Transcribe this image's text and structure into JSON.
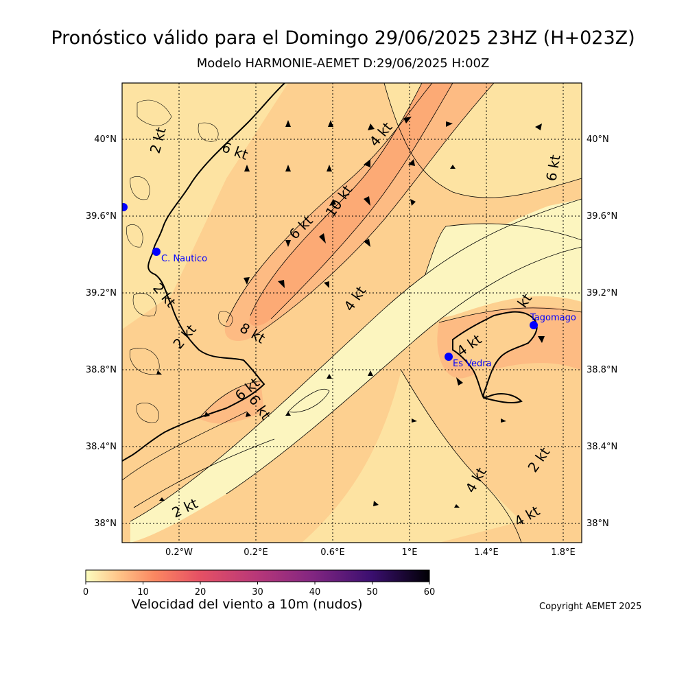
{
  "header": {
    "title": "Pronóstico válido para el Domingo 29/06/2025 23HZ (H+023Z)",
    "subtitle": "Modelo HARMONIE-AEMET D:29/06/2025 H:00Z"
  },
  "map": {
    "lat_labels": [
      "40°N",
      "39.6°N",
      "39.2°N",
      "38.8°N",
      "38.4°N",
      "38°N"
    ],
    "lon_labels": [
      "0.2°W",
      "0.2°E",
      "0.6°E",
      "1°E",
      "1.4°E",
      "1.8°E"
    ],
    "stations": [
      {
        "name": "C. Nautico"
      },
      {
        "name": "Es Vedra"
      },
      {
        "name": "Tagomago"
      },
      {
        "name": ""
      }
    ],
    "contour_labels": [
      "2 kt",
      "6 kt",
      "4 kt",
      "10 kt",
      "6 kt",
      "6 kt",
      "2 kt",
      "8 kt",
      "4 kt",
      "2 kt",
      "6 kt",
      "6 kt",
      "4 kt",
      "4 kt",
      "2 kt",
      "2 kt",
      "4 kt",
      "kt"
    ],
    "colors": {
      "sea_light": "#fcf5bf",
      "band_2": "#fde3a2",
      "band_4": "#fdd090",
      "band_6": "#fdbb83",
      "band_8": "#fcaa75",
      "station": "#0000ff"
    }
  },
  "colorbar": {
    "ticks": [
      "0",
      "10",
      "20",
      "30",
      "40",
      "50",
      "60"
    ],
    "title": "Velocidad del viento a 10m (nudos)"
  },
  "footer": {
    "copyright": "Copyright AEMET 2025"
  }
}
